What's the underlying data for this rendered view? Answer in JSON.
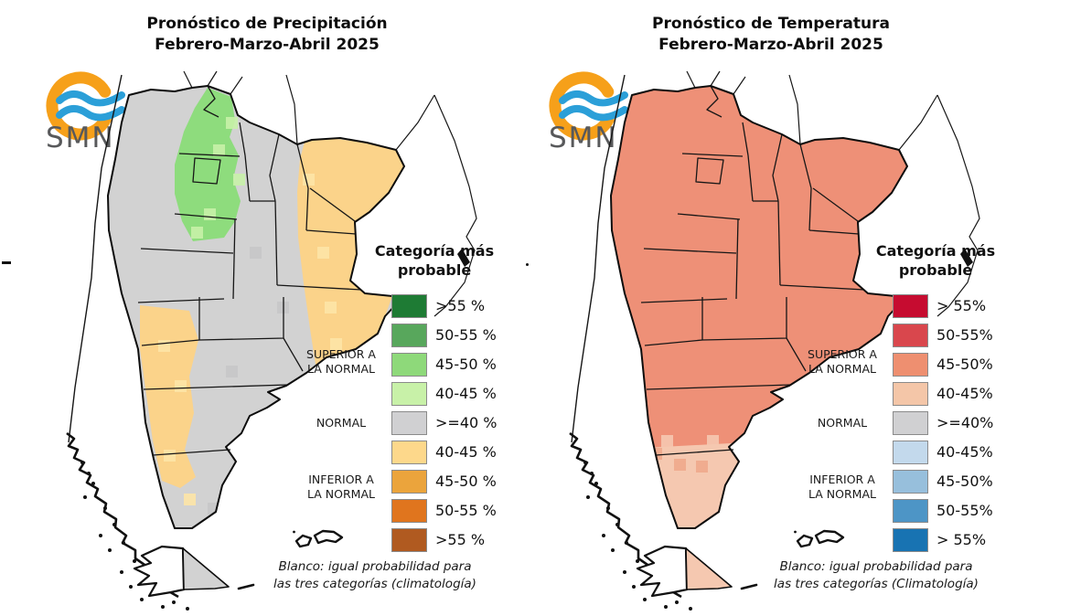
{
  "panels": [
    {
      "id": "precipitation",
      "title_line1": "Pronóstico de Precipitación",
      "title_line2": "Febrero-Marzo-Abril 2025",
      "logo": {
        "text": "SMN",
        "ring_color": "#F6A01A",
        "wave_color": "#2B9FD8",
        "text_color": "#58595B"
      },
      "legend": {
        "heading_line1": "Categoría más",
        "heading_line2": "probable",
        "groups": [
          {
            "label_line1": "SUPERIOR A",
            "label_line2": "LA NORMAL"
          },
          {
            "label_line1": "NORMAL",
            "label_line2": ""
          },
          {
            "label_line1": "INFERIOR A",
            "label_line2": "LA NORMAL"
          }
        ],
        "rows": [
          {
            "color": "#1E7B34",
            "label": ">55 %"
          },
          {
            "color": "#58A75C",
            "label": "50-55 %"
          },
          {
            "color": "#8ED97A",
            "label": "45-50 %"
          },
          {
            "color": "#C8F1A8",
            "label": "40-45 %"
          },
          {
            "color": "#D0D0D2",
            "label": ">=40 %"
          },
          {
            "color": "#FDD88B",
            "label": "40-45 %"
          },
          {
            "color": "#EBA43C",
            "label": "45-50 %"
          },
          {
            "color": "#E0751E",
            "label": "50-55 %"
          },
          {
            "color": "#B05A20",
            "label": ">55 %"
          }
        ]
      },
      "footnote_line1": "Blanco: igual probabilidad para",
      "footnote_line2": "las tres categorías (climatología)",
      "map": {
        "base_color": "#D2D2D2",
        "region_colors": {
          "northwest": "#8EDC7D",
          "east_band": "#FBD38A",
          "west_band": "#FBD38A",
          "south": null,
          "tierra_del_fuego": "#D2D2D2"
        },
        "pixel_colors": {
          "a": "#C8F1A8",
          "b": "#FDE4A6",
          "c": "#C6C6C8"
        }
      }
    },
    {
      "id": "temperature",
      "title_line1": "Pronóstico de Temperatura",
      "title_line2": "Febrero-Marzo-Abril 2025",
      "logo": {
        "text": "SMN",
        "ring_color": "#F6A01A",
        "wave_color": "#2B9FD8",
        "text_color": "#58595B"
      },
      "legend": {
        "heading_line1": "Categoría más",
        "heading_line2": "probable",
        "groups": [
          {
            "label_line1": "SUPERIOR A",
            "label_line2": "LA NORMAL"
          },
          {
            "label_line1": "NORMAL",
            "label_line2": ""
          },
          {
            "label_line1": "INFERIOR A",
            "label_line2": "LA NORMAL"
          }
        ],
        "rows": [
          {
            "color": "#C60C30",
            "label": "> 55%"
          },
          {
            "color": "#D9474D",
            "label": "50-55%"
          },
          {
            "color": "#EE8F70",
            "label": "45-50%"
          },
          {
            "color": "#F4C6A8",
            "label": "40-45%"
          },
          {
            "color": "#D0D0D2",
            "label": ">=40%"
          },
          {
            "color": "#C3D9EC",
            "label": "40-45%"
          },
          {
            "color": "#97BFDC",
            "label": "45-50%"
          },
          {
            "color": "#4D95C6",
            "label": "50-55%"
          },
          {
            "color": "#1873B2",
            "label": "> 55%"
          }
        ]
      },
      "footnote_line1": "Blanco: igual probabilidad para",
      "footnote_line2": "las tres categorías (Climatología)",
      "map": {
        "base_color": "#EE9077",
        "region_colors": {
          "northwest": null,
          "east_band": null,
          "west_band": null,
          "south": "#F5C8B0",
          "tierra_del_fuego": "#F5C8B0"
        },
        "pixel_colors": {
          "a": "#F5C8B0",
          "b": "#F0A98C",
          "c": "#E9835F"
        }
      }
    }
  ]
}
